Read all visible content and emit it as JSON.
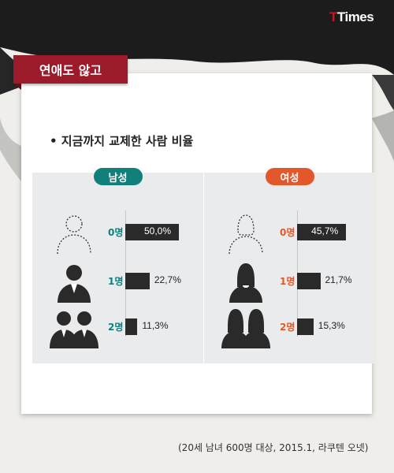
{
  "brand": {
    "t": "T",
    "rest": "Times"
  },
  "header": {
    "tag": "연애도 않고"
  },
  "subtitle": "• 지금까지 교제한 사람 비율",
  "colors": {
    "male": "#12807a",
    "female": "#e2582a",
    "ribbon": "#9b1b2a",
    "bar": "#2a2a2a"
  },
  "source": "(20세 남녀 600명 대상, 2015.1, 라쿠텐 오넷)",
  "chart_data": [
    {
      "type": "bar",
      "title": "남성",
      "categories": [
        "0명",
        "1명",
        "2명"
      ],
      "series": [
        {
          "values": [
            50.0,
            22.7,
            11.3
          ]
        }
      ],
      "value_labels": [
        "50,0%",
        "22,7%",
        "11,3%"
      ]
    },
    {
      "type": "bar",
      "title": "여성",
      "categories": [
        "0명",
        "1명",
        "2명"
      ],
      "series": [
        {
          "values": [
            45.7,
            21.7,
            15.3
          ]
        }
      ],
      "value_labels": [
        "45,7%",
        "21,7%",
        "15,3%"
      ]
    }
  ]
}
